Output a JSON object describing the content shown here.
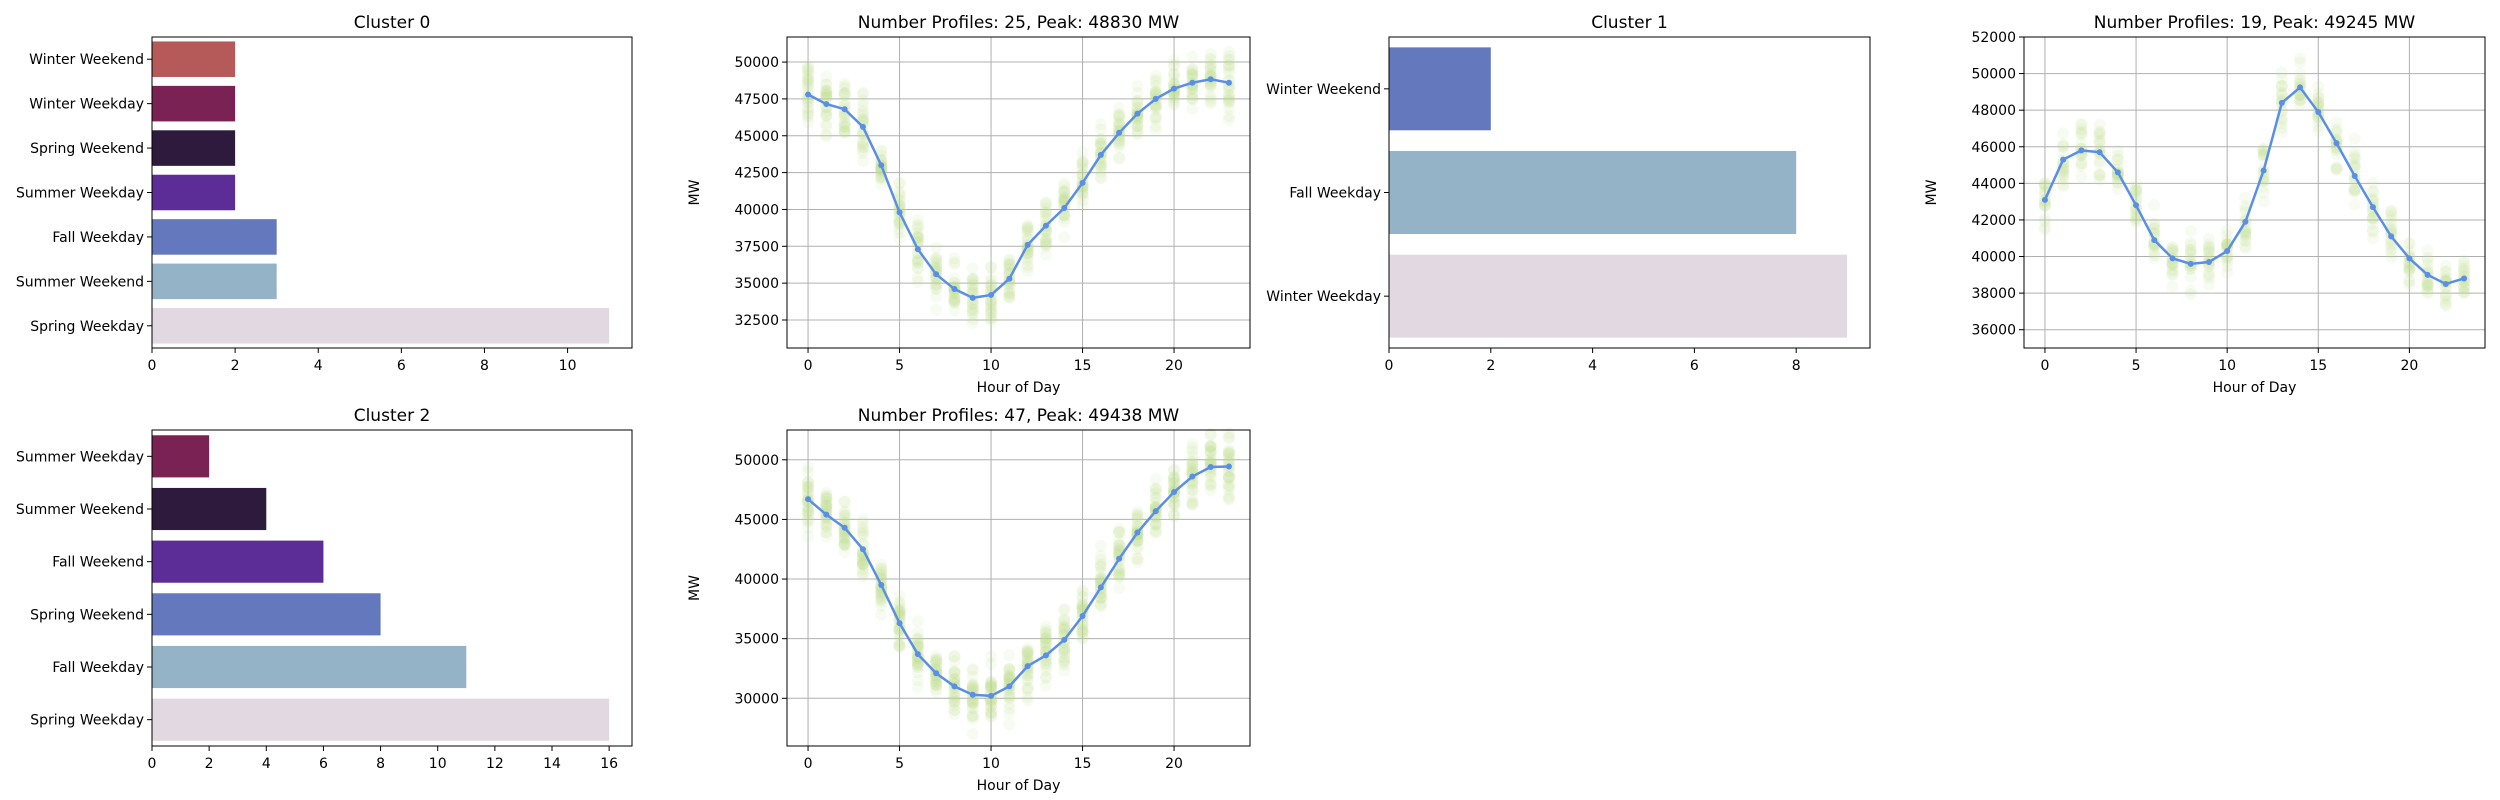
{
  "chart_data": [
    {
      "type": "bar",
      "orientation": "horizontal",
      "title": "Cluster 0",
      "categories": [
        "Winter Weekend",
        "Winter Weekday",
        "Spring Weekend",
        "Summer Weekday",
        "Fall Weekday",
        "Summer Weekend",
        "Spring Weekday"
      ],
      "values": [
        2,
        2,
        2,
        2,
        3,
        3,
        11
      ],
      "colors": [
        "#b55a58",
        "#7b2255",
        "#2d1a3d",
        "#5c2d96",
        "#6478be",
        "#95b3c6",
        "#e1d8e1"
      ],
      "xlim": [
        0,
        11.55
      ],
      "xticks": [
        0,
        2,
        4,
        6,
        8,
        10
      ]
    },
    {
      "type": "line",
      "title": "Number Profiles: 25, Peak: 48830 MW",
      "xlabel": "Hour of Day",
      "ylabel": "MW",
      "xlim": [
        -1.15,
        24.15
      ],
      "ylim": [
        30600,
        51700
      ],
      "xticks": [
        0,
        5,
        10,
        15,
        20
      ],
      "yticks": [
        32500,
        35000,
        37500,
        40000,
        42500,
        45000,
        47500,
        50000
      ],
      "series": [
        {
          "values": [
            47800,
            47150,
            46800,
            45600,
            43000,
            39800,
            37300,
            35600,
            34600,
            34000,
            34200,
            35300,
            37600,
            38900,
            40100,
            41800,
            43700,
            45200,
            46500,
            47500,
            48200,
            48600,
            48830,
            48600
          ]
        }
      ],
      "scatter_profiles": 25
    },
    {
      "type": "bar",
      "orientation": "horizontal",
      "title": "Cluster 1",
      "categories": [
        "Winter Weekend",
        "Fall Weekday",
        "Winter Weekday"
      ],
      "values": [
        2,
        8,
        9
      ],
      "colors": [
        "#6478be",
        "#95b3c6",
        "#e1d8e1"
      ],
      "xlim": [
        0,
        9.45
      ],
      "xticks": [
        0,
        2,
        4,
        6,
        8
      ]
    },
    {
      "type": "line",
      "title": "Number Profiles: 19, Peak: 49245 MW",
      "xlabel": "Hour of Day",
      "ylabel": "MW",
      "xlim": [
        -1.15,
        24.15
      ],
      "ylim": [
        35000,
        52000
      ],
      "xticks": [
        0,
        5,
        10,
        15,
        20
      ],
      "yticks": [
        36000,
        38000,
        40000,
        42000,
        44000,
        46000,
        48000,
        50000,
        52000
      ],
      "series": [
        {
          "values": [
            43100,
            45300,
            45800,
            45700,
            44600,
            42800,
            40900,
            39900,
            39600,
            39700,
            40300,
            41900,
            44700,
            48400,
            49245,
            47900,
            46200,
            44400,
            42700,
            41100,
            39900,
            39000,
            38500,
            38800
          ]
        }
      ],
      "scatter_profiles": 19
    },
    {
      "type": "bar",
      "orientation": "horizontal",
      "title": "Cluster 2",
      "categories": [
        "Summer Weekday",
        "Summer Weekend",
        "Fall Weekend",
        "Spring Weekend",
        "Fall Weekday",
        "Spring Weekday"
      ],
      "values": [
        2,
        4,
        6,
        8,
        11,
        16
      ],
      "colors": [
        "#7b2255",
        "#2d1a3d",
        "#5c2d96",
        "#6478be",
        "#95b3c6",
        "#e1d8e1"
      ],
      "xlim": [
        0,
        16.8
      ],
      "xticks": [
        0,
        2,
        4,
        6,
        8,
        10,
        12,
        14,
        16
      ]
    },
    {
      "type": "line",
      "title": "Number Profiles: 47, Peak: 49438 MW",
      "xlabel": "Hour of Day",
      "ylabel": "MW",
      "xlim": [
        -1.15,
        24.15
      ],
      "ylim": [
        26000,
        52500
      ],
      "xticks": [
        0,
        5,
        10,
        15,
        20
      ],
      "yticks": [
        30000,
        35000,
        40000,
        45000,
        50000
      ],
      "series": [
        {
          "values": [
            46700,
            45400,
            44300,
            42500,
            39500,
            36300,
            33700,
            32100,
            31000,
            30300,
            30200,
            31000,
            32700,
            33600,
            34900,
            36900,
            39300,
            41700,
            43900,
            45700,
            47300,
            48600,
            49400,
            49438
          ]
        }
      ],
      "scatter_profiles": 47
    }
  ],
  "colors": {
    "line": "#5b8ee6",
    "scatter": "#bde08a",
    "grid": "#b0b0b0",
    "axes": "#000000"
  }
}
